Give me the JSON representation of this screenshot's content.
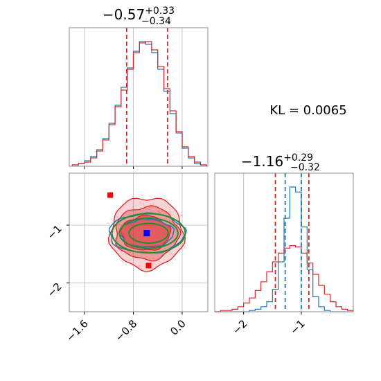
{
  "chart_data": {
    "type": "corner",
    "colors": {
      "series_a": "#d62728",
      "series_b": "#1f77b4",
      "overlay": "#2a8a2a",
      "marker_a": "#ff0000",
      "marker_b": "#0000ff",
      "grid": "#bbbbbb",
      "frame": "#888888"
    },
    "annotation": "KL = 0.0065",
    "param1": {
      "title_main": "−0.57",
      "title_plus": "+0.33",
      "title_minus": "−0.34",
      "range": [
        -1.85,
        0.42
      ],
      "ticks": [
        -1.6,
        -0.8,
        0.0
      ],
      "tick_labels": [
        "−1.6",
        "−0.8",
        "0.0"
      ],
      "quantile_lines": [
        -0.91,
        -0.24
      ],
      "hist_centers": [
        -1.75,
        -1.65,
        -1.55,
        -1.45,
        -1.35,
        -1.25,
        -1.15,
        -1.05,
        -0.95,
        -0.85,
        -0.75,
        -0.65,
        -0.55,
        -0.45,
        -0.35,
        -0.25,
        -0.15,
        -0.05,
        0.05,
        0.15,
        0.25,
        0.35
      ],
      "hist_a": [
        1,
        2,
        3,
        6,
        11,
        19,
        30,
        43,
        55,
        70,
        82,
        89,
        90,
        84,
        72,
        56,
        40,
        25,
        14,
        7,
        3,
        1
      ],
      "hist_b": [
        1,
        2,
        4,
        7,
        12,
        20,
        31,
        44,
        57,
        71,
        83,
        90,
        88,
        82,
        70,
        54,
        38,
        24,
        13,
        6,
        2,
        1
      ]
    },
    "param2": {
      "title_main": "−1.16",
      "title_plus": "+0.29",
      "title_minus": "−0.32",
      "range": [
        -2.5,
        -0.1
      ],
      "ticks": [
        -2,
        -1
      ],
      "tick_labels": [
        "−2",
        "−1"
      ],
      "quantile_lines_a": [
        -1.45,
        -0.87
      ],
      "quantile_lines_b": [
        -1.28,
        -1.0
      ],
      "hist_centers": [
        -2.45,
        -2.35,
        -2.25,
        -2.15,
        -2.05,
        -1.95,
        -1.85,
        -1.75,
        -1.65,
        -1.55,
        -1.45,
        -1.35,
        -1.25,
        -1.15,
        -1.05,
        -0.95,
        -0.85,
        -0.75,
        -0.65,
        -0.55,
        -0.45,
        -0.35,
        -0.25,
        -0.15
      ],
      "hist_a": [
        0,
        1,
        1,
        2,
        4,
        7,
        11,
        17,
        24,
        32,
        40,
        47,
        51,
        53,
        52,
        47,
        39,
        30,
        21,
        14,
        8,
        4,
        2,
        1
      ],
      "hist_b": [
        0,
        0,
        0,
        0,
        0,
        0,
        1,
        2,
        4,
        8,
        18,
        40,
        75,
        100,
        96,
        68,
        34,
        12,
        4,
        1,
        0,
        0,
        0,
        0
      ]
    },
    "joint": {
      "contours_a": [
        {
          "cx": -0.58,
          "cy": -1.14,
          "rx": 0.6,
          "ry": 0.62,
          "fill_opacity": 0.35
        },
        {
          "cx": -0.58,
          "cy": -1.14,
          "rx": 0.52,
          "ry": 0.46,
          "fill_opacity": 0.6
        },
        {
          "cx": -0.6,
          "cy": -1.14,
          "rx": 0.4,
          "ry": 0.3,
          "fill_opacity": 0.95
        }
      ],
      "contours_b": [
        {
          "cx": -0.58,
          "cy": -1.14,
          "rx": 0.62,
          "ry": 0.34
        },
        {
          "cx": -0.58,
          "cy": -1.14,
          "rx": 0.44,
          "ry": 0.24
        }
      ],
      "overlay_ellipses": [
        {
          "cx": -0.55,
          "cy": -1.14,
          "rx": 0.6,
          "ry": 0.34
        },
        {
          "cx": -0.55,
          "cy": -1.14,
          "rx": 0.48,
          "ry": 0.26
        },
        {
          "cx": -0.55,
          "cy": -1.14,
          "rx": 0.32,
          "ry": 0.17
        }
      ],
      "markers_a": [
        {
          "x": -1.18,
          "y": -0.48
        },
        {
          "x": -0.55,
          "y": -1.7
        }
      ],
      "marker_b": {
        "x": -0.58,
        "y": -1.14
      }
    }
  }
}
